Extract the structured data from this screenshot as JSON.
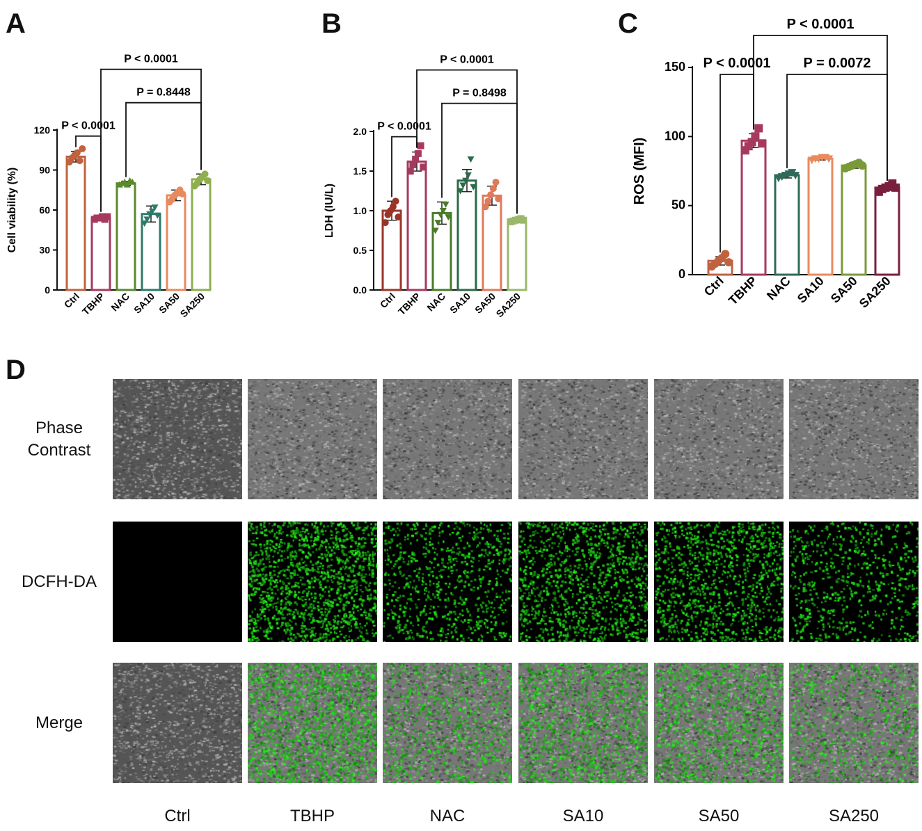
{
  "panels": {
    "A": "A",
    "B": "B",
    "C": "C",
    "D": "D"
  },
  "colors": {
    "Ctrl": "#c0623e",
    "TBHP": "#a63a5e",
    "NAC": "#5a8a2e",
    "SA10": "#2e7a6a",
    "SA50": "#e88a5e",
    "SA250": "#8fae4e",
    "B_Ctrl": "#9a3428",
    "B_TBHP": "#a63a5e",
    "B_NAC": "#4a7a2a",
    "B_SA10": "#2a6a4a",
    "B_SA50": "#e07a5a",
    "B_SA250": "#9ab86a",
    "C_Ctrl": "#c0623e",
    "C_TBHP": "#a63a5e",
    "C_NAC": "#2e6a5a",
    "C_SA10": "#e88a5e",
    "C_SA50": "#7a9a3a",
    "C_SA250": "#7a1e3e"
  },
  "chart_data": [
    {
      "id": "A",
      "type": "bar",
      "categories": [
        "Ctrl",
        "TBHP",
        "NAC",
        "SA10",
        "SA50",
        "SA250"
      ],
      "values": [
        100,
        54,
        80,
        57,
        71,
        83
      ],
      "errors": [
        4,
        1.5,
        1.5,
        6,
        4,
        4
      ],
      "points": [
        [
          96,
          99,
          101,
          103,
          97,
          106
        ],
        [
          53,
          54,
          54,
          55,
          53,
          55
        ],
        [
          79,
          80,
          81,
          79,
          82,
          81
        ],
        [
          50,
          53,
          57,
          59,
          62,
          56
        ],
        [
          66,
          68,
          71,
          73,
          75,
          72
        ],
        [
          78,
          80,
          83,
          85,
          87,
          82
        ]
      ],
      "ylabel": "Cell viability (%)",
      "ylim": [
        0,
        120
      ],
      "yticks": [
        0,
        30,
        60,
        90,
        120
      ],
      "brackets": [
        {
          "from": 0,
          "to": 1,
          "label": "P < 0.0001"
        },
        {
          "from": 2,
          "to": 5,
          "label": "P = 0.8448"
        },
        {
          "from": 1,
          "to": 5,
          "label": "P < 0.0001"
        }
      ]
    },
    {
      "id": "B",
      "type": "bar",
      "categories": [
        "Ctrl",
        "TBHP",
        "NAC",
        "SA10",
        "SA50",
        "SA250"
      ],
      "values": [
        1.0,
        1.62,
        0.97,
        1.38,
        1.19,
        0.88
      ],
      "errors": [
        0.12,
        0.12,
        0.14,
        0.14,
        0.12,
        0.03
      ],
      "points": [
        [
          0.85,
          0.95,
          1.0,
          1.05,
          1.12,
          0.92
        ],
        [
          1.5,
          1.58,
          1.65,
          1.72,
          1.82,
          1.55
        ],
        [
          0.75,
          0.85,
          0.95,
          1.0,
          1.08,
          0.92
        ],
        [
          1.25,
          1.32,
          1.38,
          1.45,
          1.65,
          1.3
        ],
        [
          1.05,
          1.12,
          1.2,
          1.28,
          1.36,
          1.15
        ],
        [
          0.86,
          0.87,
          0.88,
          0.89,
          0.9,
          0.88
        ]
      ],
      "ylabel": "LDH (IU/L)",
      "ylim": [
        0,
        2.0
      ],
      "yticks": [
        "0.0",
        "0.5",
        "1.0",
        "1.5",
        "2.0"
      ],
      "brackets": [
        {
          "from": 0,
          "to": 1,
          "label": "P < 0.0001"
        },
        {
          "from": 2,
          "to": 5,
          "label": "P = 0.8498"
        },
        {
          "from": 1,
          "to": 5,
          "label": "P < 0.0001"
        }
      ]
    },
    {
      "id": "C",
      "type": "bar",
      "categories": [
        "Ctrl",
        "TBHP",
        "NAC",
        "SA10",
        "SA50",
        "SA250"
      ],
      "values": [
        10,
        97,
        72,
        84,
        79,
        63
      ],
      "errors": [
        3,
        5,
        2,
        1,
        2,
        2
      ],
      "points": [
        [
          6,
          8,
          10,
          12,
          15,
          9
        ],
        [
          90,
          93,
          96,
          100,
          106,
          95
        ],
        [
          70,
          71,
          72,
          73,
          74,
          72
        ],
        [
          83,
          84,
          84,
          85,
          85,
          84
        ],
        [
          77,
          78,
          79,
          80,
          81,
          79
        ],
        [
          60,
          62,
          63,
          64,
          66,
          63
        ]
      ],
      "ylabel": "ROS (MFI)",
      "ylim": [
        0,
        150
      ],
      "yticks": [
        0,
        50,
        100,
        150
      ],
      "brackets": [
        {
          "from": 0,
          "to": 1,
          "label": "P < 0.0001"
        },
        {
          "from": 2,
          "to": 5,
          "label": "P = 0.0072"
        },
        {
          "from": 1,
          "to": 5,
          "label": "P < 0.0001"
        }
      ]
    }
  ],
  "micrographs": {
    "rows": [
      "Phase\nContrast",
      "DCFH-DA",
      "Merge"
    ],
    "columns": [
      "Ctrl",
      "TBHP",
      "NAC",
      "SA10",
      "SA50",
      "SA250"
    ],
    "fluorescence_levels": [
      0.0,
      1.0,
      0.55,
      0.8,
      0.75,
      0.45
    ]
  }
}
